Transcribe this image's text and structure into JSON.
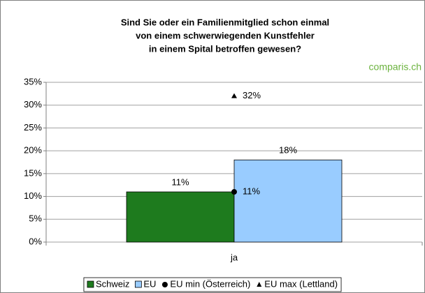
{
  "chart_data": {
    "type": "bar",
    "title": [
      "Sind Sie oder ein Familienmitglied schon einmal",
      "von einem schwerwiegenden Kunstfehler",
      "in einem Spital betroffen gewesen?"
    ],
    "annotation": "comparis.ch",
    "categories": [
      "ja"
    ],
    "series": [
      {
        "name": "Schweiz",
        "color": "#1e7b1e",
        "kind": "bar",
        "values": [
          11
        ],
        "value_labels": [
          "11%"
        ]
      },
      {
        "name": "EU",
        "color": "#99ccff",
        "kind": "bar",
        "values": [
          18
        ],
        "value_labels": [
          "18%"
        ]
      },
      {
        "name": "EU min (Österreich)",
        "color": "#000000",
        "kind": "marker",
        "marker": "circle",
        "values": [
          11
        ],
        "value_labels": [
          "11%"
        ]
      },
      {
        "name": "EU max (Lettland)",
        "color": "#000000",
        "kind": "marker",
        "marker": "triangle",
        "values": [
          32
        ],
        "value_labels": [
          "32%"
        ]
      }
    ],
    "ylim": [
      0,
      35
    ],
    "yticks": [
      {
        "value": 0,
        "label": "0%"
      },
      {
        "value": 5,
        "label": "5%"
      },
      {
        "value": 10,
        "label": "10%"
      },
      {
        "value": 15,
        "label": "15%"
      },
      {
        "value": 20,
        "label": "20%"
      },
      {
        "value": 25,
        "label": "25%"
      },
      {
        "value": 30,
        "label": "30%"
      },
      {
        "value": 35,
        "label": "35%"
      }
    ],
    "grid": true,
    "legend": "bottom"
  }
}
